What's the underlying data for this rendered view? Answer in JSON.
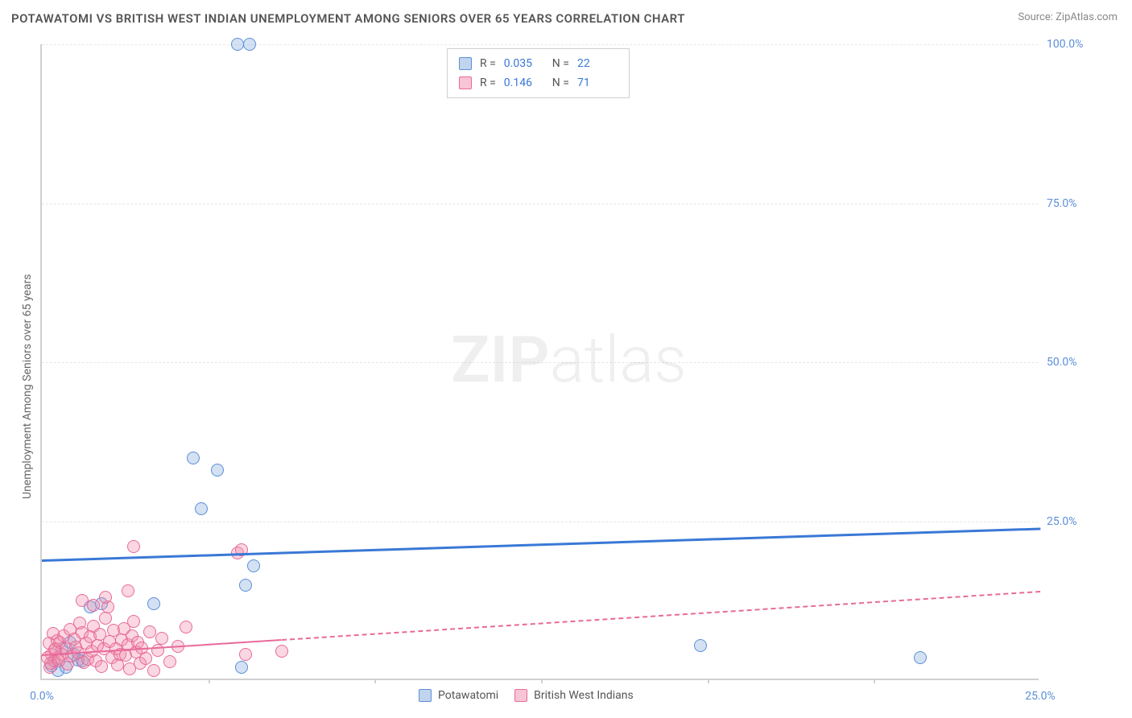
{
  "title": "POTAWATOMI VS BRITISH WEST INDIAN UNEMPLOYMENT AMONG SENIORS OVER 65 YEARS CORRELATION CHART",
  "source": "Source: ZipAtlas.com",
  "ylabel": "Unemployment Among Seniors over 65 years",
  "chart": {
    "type": "scatter",
    "xlim": [
      0,
      25
    ],
    "ylim": [
      0,
      100
    ],
    "ytick_labels": [
      "25.0%",
      "50.0%",
      "75.0%",
      "100.0%"
    ],
    "ytick_values": [
      25,
      50,
      75,
      100
    ],
    "xtick_labels": [
      "0.0%",
      "25.0%"
    ],
    "xtick_values": [
      0,
      25
    ],
    "xminor_ticks": [
      4.17,
      8.33,
      12.5,
      16.67,
      20.83
    ],
    "background_color": "#ffffff",
    "grid_color": "#e8e8e8",
    "colors": {
      "blue": "#5b8fd8",
      "blue_line": "#3a78d6",
      "pink": "#e86a9a"
    },
    "watermark": {
      "text_bold": "ZIP",
      "text_light": "atlas"
    },
    "series": [
      {
        "name": "Potawatomi",
        "color_key": "blue",
        "R": "0.035",
        "N": "22",
        "trend": {
          "x0": 0,
          "y0": 19,
          "x1": 25,
          "y1": 24,
          "solid_until_x": 25,
          "width": 3
        },
        "points": [
          [
            0.3,
            3
          ],
          [
            0.4,
            1.5
          ],
          [
            0.5,
            5
          ],
          [
            0.6,
            2
          ],
          [
            0.8,
            4
          ],
          [
            1.0,
            3
          ],
          [
            1.2,
            11.5
          ],
          [
            1.5,
            12
          ],
          [
            2.8,
            12
          ],
          [
            4.0,
            27
          ],
          [
            3.8,
            35
          ],
          [
            4.4,
            33
          ],
          [
            5.0,
            2
          ],
          [
            5.1,
            15
          ],
          [
            5.3,
            18
          ],
          [
            16.5,
            5.5
          ],
          [
            22.0,
            3.5
          ],
          [
            4.9,
            100
          ],
          [
            5.2,
            100
          ],
          [
            0.7,
            6
          ],
          [
            0.9,
            3.2
          ],
          [
            0.25,
            2.3
          ]
        ]
      },
      {
        "name": "British West Indians",
        "color_key": "pink",
        "R": "0.146",
        "N": "71",
        "trend": {
          "x0": 0,
          "y0": 4,
          "x1": 25,
          "y1": 14,
          "solid_until_x": 6,
          "width": 2
        },
        "points": [
          [
            0.2,
            2
          ],
          [
            0.25,
            4
          ],
          [
            0.3,
            3
          ],
          [
            0.35,
            5
          ],
          [
            0.4,
            3.5
          ],
          [
            0.45,
            6
          ],
          [
            0.5,
            4
          ],
          [
            0.55,
            7
          ],
          [
            0.6,
            5
          ],
          [
            0.65,
            2.5
          ],
          [
            0.7,
            8
          ],
          [
            0.75,
            3.8
          ],
          [
            0.8,
            6.5
          ],
          [
            0.85,
            5.2
          ],
          [
            0.9,
            4.3
          ],
          [
            0.95,
            9
          ],
          [
            1.0,
            7.5
          ],
          [
            1.05,
            2.8
          ],
          [
            1.1,
            5.8
          ],
          [
            1.15,
            3.3
          ],
          [
            1.2,
            6.8
          ],
          [
            1.25,
            4.6
          ],
          [
            1.3,
            8.5
          ],
          [
            1.35,
            3.1
          ],
          [
            1.4,
            5.4
          ],
          [
            1.45,
            7.2
          ],
          [
            1.5,
            2.1
          ],
          [
            1.55,
            4.9
          ],
          [
            1.6,
            9.8
          ],
          [
            1.65,
            11.5
          ],
          [
            1.7,
            6.1
          ],
          [
            1.75,
            3.6
          ],
          [
            1.8,
            7.8
          ],
          [
            1.85,
            5.0
          ],
          [
            1.9,
            2.4
          ],
          [
            1.95,
            4.1
          ],
          [
            2.0,
            6.3
          ],
          [
            2.05,
            8.1
          ],
          [
            2.1,
            3.9
          ],
          [
            2.15,
            5.6
          ],
          [
            2.2,
            1.8
          ],
          [
            2.25,
            7.0
          ],
          [
            2.3,
            9.2
          ],
          [
            2.35,
            4.4
          ],
          [
            2.4,
            6.0
          ],
          [
            2.45,
            2.6
          ],
          [
            2.5,
            5.1
          ],
          [
            2.6,
            3.4
          ],
          [
            2.7,
            7.6
          ],
          [
            2.8,
            1.5
          ],
          [
            2.9,
            4.7
          ],
          [
            3.0,
            6.6
          ],
          [
            3.2,
            2.9
          ],
          [
            3.4,
            5.3
          ],
          [
            3.6,
            8.3
          ],
          [
            1.0,
            12.5
          ],
          [
            1.3,
            11.8
          ],
          [
            1.6,
            13
          ],
          [
            2.3,
            21
          ],
          [
            4.9,
            20
          ],
          [
            5.0,
            20.5
          ],
          [
            5.1,
            4
          ],
          [
            6.0,
            4.5
          ],
          [
            0.15,
            3.5
          ],
          [
            0.18,
            5.8
          ],
          [
            0.22,
            2.7
          ],
          [
            0.28,
            7.3
          ],
          [
            0.32,
            4.8
          ],
          [
            0.38,
            6.2
          ],
          [
            0.42,
            3.0
          ],
          [
            2.15,
            14
          ]
        ]
      }
    ]
  },
  "stats_legend": {
    "rows": [
      {
        "swatch": "blue",
        "R_lbl": "R =",
        "R": "0.035",
        "N_lbl": "N =",
        "N": "22"
      },
      {
        "swatch": "pink",
        "R_lbl": "R =",
        "R": "0.146",
        "N_lbl": "N =",
        "N": "71"
      }
    ]
  },
  "bottom_legend": {
    "items": [
      {
        "swatch": "blue",
        "label": "Potawatomi"
      },
      {
        "swatch": "pink",
        "label": "British West Indians"
      }
    ]
  }
}
